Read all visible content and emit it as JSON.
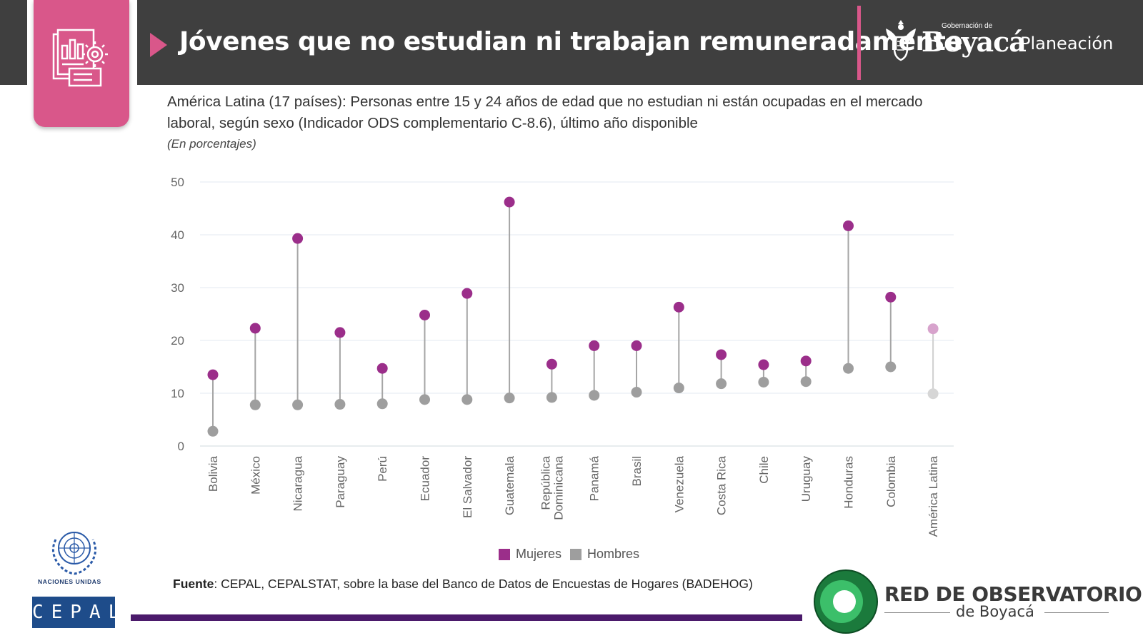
{
  "header": {
    "title": "Jóvenes que no estudian ni trabajan remuneradamente",
    "gov_prefix": "Gobernación de",
    "gov_name": "Boyacá",
    "gov_department": "Planeación"
  },
  "colors": {
    "header_bg": "#3f3f3f",
    "accent_pink": "#d9578a",
    "women": "#9b2e8a",
    "men": "#9e9e9e",
    "line_purple": "#4b1a6b"
  },
  "icons": [
    "report-gear-icon",
    "boyaca-emblem-icon",
    "un-emblem-icon",
    "red-observatorios-ring-icon"
  ],
  "chart_data": {
    "type": "dumbbell",
    "subtitle": "América Latina (17 países): Personas entre 15 y 24 años de edad que no estudian ni están ocupadas en el mercado laboral, según sexo (Indicador ODS complementario C-8.6), último año disponible",
    "units": "(En porcentajes)",
    "categories": [
      "Bolivia",
      "México",
      "Nicaragua",
      "Paraguay",
      "Perú",
      "Ecuador",
      "El Salvador",
      "Guatemala",
      "República Dominicana",
      "Panamá",
      "Brasil",
      "Venezuela",
      "Costa Rica",
      "Chile",
      "Uruguay",
      "Honduras",
      "Colombia",
      "América Latina"
    ],
    "series": [
      {
        "name": "Mujeres",
        "values": [
          13.5,
          22.3,
          39.3,
          21.5,
          14.7,
          24.8,
          28.9,
          46.2,
          15.5,
          19.0,
          19.0,
          26.3,
          17.3,
          15.4,
          16.1,
          41.7,
          28.2,
          22.2
        ]
      },
      {
        "name": "Hombres",
        "values": [
          2.8,
          7.8,
          7.8,
          7.9,
          8.0,
          8.8,
          8.8,
          9.1,
          9.2,
          9.6,
          10.2,
          11.0,
          11.8,
          12.1,
          12.2,
          14.7,
          15.0,
          9.9
        ]
      }
    ],
    "yticks": [
      0,
      10,
      20,
      30,
      40,
      50
    ],
    "ylim": [
      0,
      50
    ],
    "grid": true,
    "legend_position": "bottom"
  },
  "source": {
    "label": "Fuente",
    "text": ": CEPAL, CEPALSTAT, sobre la base del Banco de Datos de Encuestas de Hogares (BADEHOG)"
  },
  "footer": {
    "un_text": "Naciones Unidas",
    "cepal": "CEPAL",
    "red_title": "RED DE OBSERVATORIOS",
    "red_sub": "de Boyacá"
  }
}
